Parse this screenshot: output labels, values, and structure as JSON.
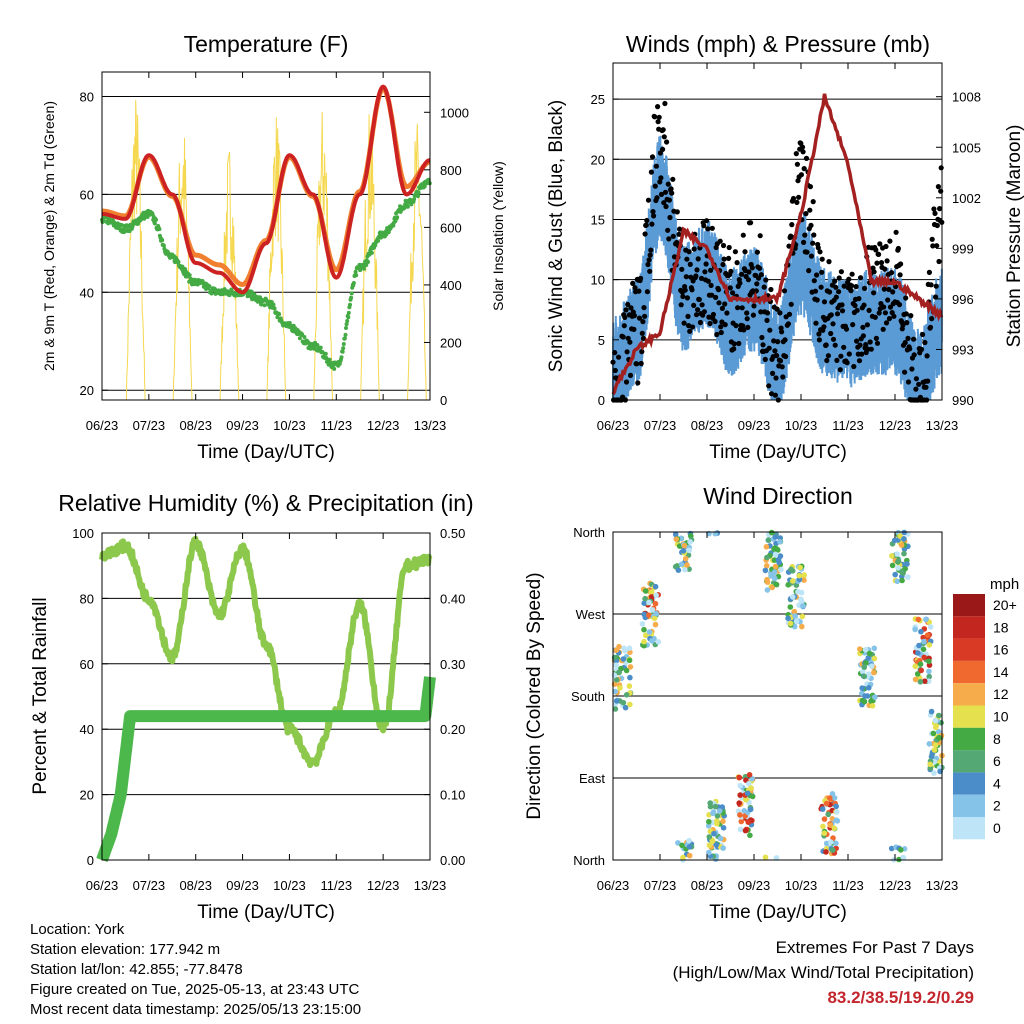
{
  "colors": {
    "temp2m": "#cc2222",
    "temp9m": "#f08030",
    "dew": "#44aa44",
    "solar": "#f5d850",
    "wind": "#5b9bd5",
    "gust": "#000000",
    "pressure": "#a32020",
    "rh": "#8cc84b",
    "precip": "#4cb84c",
    "speed_scale": [
      "#bde4f7",
      "#86c3e8",
      "#4a8dc8",
      "#53a873",
      "#44aa44",
      "#e4e04e",
      "#f6ac4a",
      "#f06a30",
      "#d83a26",
      "#c2261e",
      "#9b1818"
    ]
  },
  "time_ticks": [
    "06/23",
    "07/23",
    "08/23",
    "09/23",
    "10/23",
    "11/23",
    "12/23",
    "13/23"
  ],
  "charts": {
    "temperature": {
      "title": "Temperature (F)",
      "xlabel": "Time (Day/UTC)",
      "ylabel_left": "2m & 9m T (Red, Orange) & 2m Td (Green)",
      "ylabel_right": "Solar Insolation (Yellow)",
      "left_ticks": [
        "20",
        "40",
        "60",
        "80"
      ],
      "right_ticks": [
        "0",
        "200",
        "400",
        "600",
        "800",
        "1000"
      ]
    },
    "winds": {
      "title": "Winds (mph) & Pressure (mb)",
      "xlabel": "Time (Day/UTC)",
      "ylabel_left": "Sonic Wind & Gust (Blue, Black)",
      "ylabel_right": "Station Pressure (Maroon)",
      "left_ticks": [
        "0",
        "5",
        "10",
        "15",
        "20",
        "25"
      ],
      "right_ticks": [
        "990",
        "993",
        "996",
        "999",
        "1002",
        "1005",
        "1008"
      ]
    },
    "humidity": {
      "title": "Relative Humidity (%) & Precipitation (in)",
      "xlabel": "Time (Day/UTC)",
      "ylabel_left": "Percent & Total Rainfall",
      "left_ticks": [
        "0",
        "20",
        "40",
        "60",
        "80",
        "100"
      ],
      "right_ticks": [
        "0.00",
        "0.10",
        "0.20",
        "0.30",
        "0.40",
        "0.50"
      ]
    },
    "direction": {
      "title": "Wind Direction",
      "xlabel": "Time (Day/UTC)",
      "ylabel_left": "Direction (Colored By Speed)",
      "left_ticks": [
        "North",
        "East",
        "South",
        "West",
        "North"
      ],
      "legend_unit": "mph",
      "legend_labels": [
        "20+",
        "18",
        "16",
        "14",
        "12",
        "10",
        "8",
        "6",
        "4",
        "2",
        "0"
      ]
    }
  },
  "chart_data": [
    {
      "type": "line",
      "title": "Temperature (F)",
      "x": [
        0,
        0.5,
        1,
        1.5,
        2,
        2.5,
        3,
        3.5,
        4,
        4.5,
        5,
        5.5,
        6,
        6.5,
        7
      ],
      "ylim": [
        18,
        85
      ],
      "y2lim": [
        0,
        1140
      ],
      "series": [
        {
          "name": "2m T",
          "values": [
            56,
            55,
            68,
            60,
            46,
            44,
            40,
            50,
            68,
            60,
            43,
            60,
            82,
            60,
            67
          ]
        },
        {
          "name": "9m T",
          "values": [
            56,
            55,
            67,
            59,
            47,
            45,
            41,
            50,
            67,
            59,
            44,
            60,
            81,
            61,
            66
          ]
        },
        {
          "name": "2m Td",
          "values": [
            55,
            53,
            56,
            47,
            42,
            40,
            40,
            38,
            33,
            29,
            25,
            45,
            52,
            58,
            63
          ]
        }
      ],
      "solar_peaks": [
        1080,
        1000,
        900,
        1020,
        1040,
        1030,
        980
      ]
    },
    {
      "type": "scatter",
      "title": "Winds (mph) & Pressure (mb)",
      "ylim": [
        0,
        28
      ],
      "y2lim": [
        990,
        1010
      ],
      "series": [
        {
          "name": "Sonic Wind",
          "x": [
            0,
            0.5,
            1,
            1.5,
            2,
            2.5,
            3,
            3.5,
            4,
            4.5,
            5,
            5.5,
            6,
            6.5,
            7
          ],
          "values": [
            3,
            6,
            18,
            9,
            11,
            7,
            9,
            4,
            12,
            7,
            6,
            7,
            7,
            2,
            7
          ]
        },
        {
          "name": "Gust",
          "x": [
            0,
            0.5,
            1,
            1.5,
            2,
            2.5,
            3,
            3.5,
            4,
            4.5,
            5,
            5.5,
            6,
            6.5,
            7
          ],
          "values": [
            5,
            10,
            26,
            14,
            15,
            13,
            15,
            8,
            22,
            12,
            11,
            13,
            14,
            5,
            20
          ]
        },
        {
          "name": "Station Pressure",
          "x": [
            0,
            0.5,
            1,
            1.5,
            2,
            2.5,
            3,
            3.5,
            4,
            4.5,
            5,
            5.5,
            6,
            6.5,
            7
          ],
          "values": [
            990.5,
            993,
            994,
            1000,
            999,
            996,
            996,
            996,
            1001,
            1008,
            1004,
            997,
            997,
            996,
            995
          ]
        }
      ]
    },
    {
      "type": "line",
      "title": "Relative Humidity (%) & Precipitation (in)",
      "ylim": [
        0,
        100
      ],
      "y2lim": [
        0,
        0.5
      ],
      "series": [
        {
          "name": "RH",
          "x": [
            0,
            0.5,
            1,
            1.5,
            2,
            2.5,
            3,
            3.5,
            4,
            4.5,
            5,
            5.5,
            6,
            6.5,
            7
          ],
          "values": [
            93,
            96,
            80,
            62,
            97,
            75,
            95,
            66,
            40,
            30,
            45,
            78,
            40,
            90,
            92
          ]
        },
        {
          "name": "Precip",
          "x": [
            0,
            0.2,
            0.4,
            0.6,
            1,
            2,
            3,
            4,
            5,
            6,
            6.9,
            7
          ],
          "values": [
            0,
            0.04,
            0.1,
            0.22,
            0.22,
            0.22,
            0.22,
            0.22,
            0.22,
            0.22,
            0.22,
            0.28
          ]
        }
      ]
    },
    {
      "type": "scatter",
      "title": "Wind Direction",
      "direction_ticks": [
        "North",
        "East",
        "South",
        "West",
        "North"
      ],
      "series": [
        {
          "name": "Direction",
          "x": [
            0.2,
            0.8,
            1.5,
            2.2,
            2.8,
            3.4,
            3.9,
            4.6,
            5.4,
            6.1,
            6.6,
            6.9
          ],
          "values": [
            200,
            270,
            350,
            30,
            60,
            330,
            290,
            40,
            200,
            340,
            230,
            130
          ]
        }
      ]
    }
  ],
  "footer": {
    "location": "Location: York",
    "elevation": "Station elevation: 177.942 m",
    "latlon": "Station lat/lon: 42.855; -77.8478",
    "created": "Figure created on Tue, 2025-05-13, at 23:43 UTC",
    "recent": "Most recent data timestamp: 2025/05/13 23:15:00",
    "extremes_title": "Extremes For Past 7 Days",
    "extremes_sub": "(High/Low/Max Wind/Total Precipitation)",
    "extremes_values": "83.2/38.5/19.2/0.29"
  }
}
